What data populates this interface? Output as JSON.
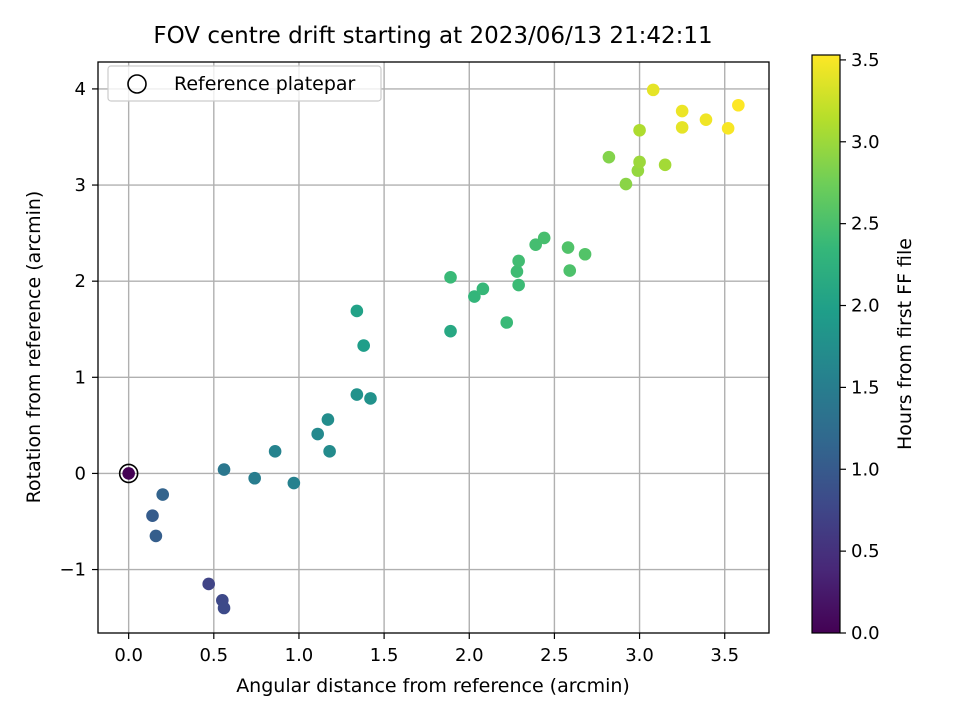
{
  "chart_data": {
    "type": "scatter",
    "title": "FOV centre drift starting at 2023/06/13 21:42:11",
    "xlabel": "Angular distance from reference (arcmin)",
    "ylabel": "Rotation from reference (arcmin)",
    "xlim": [
      -0.18,
      3.76
    ],
    "ylim": [
      -1.66,
      4.28
    ],
    "x_ticks": [
      0.0,
      0.5,
      1.0,
      1.5,
      2.0,
      2.5,
      3.0,
      3.5
    ],
    "x_tick_labels": [
      "0.0",
      "0.5",
      "1.0",
      "1.5",
      "2.0",
      "2.5",
      "3.0",
      "3.5"
    ],
    "y_ticks": [
      -1,
      0,
      1,
      2,
      3,
      4
    ],
    "y_tick_labels": [
      "−1",
      "0",
      "1",
      "2",
      "3",
      "4"
    ],
    "grid": true,
    "colorbar": {
      "label": "Hours from first FF file",
      "colormap": "viridis",
      "range": [
        0.0,
        3.53
      ],
      "ticks": [
        0.0,
        0.5,
        1.0,
        1.5,
        2.0,
        2.5,
        3.0,
        3.5
      ],
      "tick_labels": [
        "0.0",
        "0.5",
        "1.0",
        "1.5",
        "2.0",
        "2.5",
        "3.0",
        "3.5"
      ]
    },
    "legend": {
      "location": "top-left",
      "entries": [
        {
          "label": "Reference platepar",
          "marker": "open-circle"
        }
      ]
    },
    "reference_point": {
      "x": 0.0,
      "y": 0.0
    },
    "points": [
      {
        "x": 0.0,
        "y": 0.0,
        "hours": 0.0
      },
      {
        "x": 0.47,
        "y": -1.15,
        "hours": 0.72
      },
      {
        "x": 0.55,
        "y": -1.32,
        "hours": 0.78
      },
      {
        "x": 0.56,
        "y": -1.4,
        "hours": 0.8
      },
      {
        "x": 0.14,
        "y": -0.44,
        "hours": 1.02
      },
      {
        "x": 0.16,
        "y": -0.65,
        "hours": 1.05
      },
      {
        "x": 0.2,
        "y": -0.22,
        "hours": 1.12
      },
      {
        "x": 0.56,
        "y": 0.04,
        "hours": 1.4
      },
      {
        "x": 0.74,
        "y": -0.05,
        "hours": 1.5
      },
      {
        "x": 0.97,
        "y": -0.1,
        "hours": 1.56
      },
      {
        "x": 0.86,
        "y": 0.23,
        "hours": 1.58
      },
      {
        "x": 1.11,
        "y": 0.41,
        "hours": 1.66
      },
      {
        "x": 1.18,
        "y": 0.23,
        "hours": 1.7
      },
      {
        "x": 1.17,
        "y": 0.56,
        "hours": 1.72
      },
      {
        "x": 1.34,
        "y": 0.82,
        "hours": 1.8
      },
      {
        "x": 1.42,
        "y": 0.78,
        "hours": 1.8
      },
      {
        "x": 1.38,
        "y": 1.33,
        "hours": 1.96
      },
      {
        "x": 1.34,
        "y": 1.69,
        "hours": 2.02
      },
      {
        "x": 1.89,
        "y": 1.48,
        "hours": 2.12
      },
      {
        "x": 2.03,
        "y": 1.84,
        "hours": 2.32
      },
      {
        "x": 2.08,
        "y": 1.92,
        "hours": 2.36
      },
      {
        "x": 1.89,
        "y": 2.04,
        "hours": 2.38
      },
      {
        "x": 2.22,
        "y": 1.57,
        "hours": 2.38
      },
      {
        "x": 2.29,
        "y": 1.96,
        "hours": 2.4
      },
      {
        "x": 2.28,
        "y": 2.1,
        "hours": 2.42
      },
      {
        "x": 2.29,
        "y": 2.21,
        "hours": 2.44
      },
      {
        "x": 2.39,
        "y": 2.38,
        "hours": 2.46
      },
      {
        "x": 2.44,
        "y": 2.45,
        "hours": 2.48
      },
      {
        "x": 2.59,
        "y": 2.11,
        "hours": 2.52
      },
      {
        "x": 2.58,
        "y": 2.35,
        "hours": 2.54
      },
      {
        "x": 2.68,
        "y": 2.28,
        "hours": 2.56
      },
      {
        "x": 2.82,
        "y": 3.29,
        "hours": 2.86
      },
      {
        "x": 2.92,
        "y": 3.01,
        "hours": 2.9
      },
      {
        "x": 2.99,
        "y": 3.15,
        "hours": 2.96
      },
      {
        "x": 3.0,
        "y": 3.24,
        "hours": 3.0
      },
      {
        "x": 3.15,
        "y": 3.21,
        "hours": 3.04
      },
      {
        "x": 3.0,
        "y": 3.57,
        "hours": 3.1
      },
      {
        "x": 3.08,
        "y": 3.99,
        "hours": 3.4
      },
      {
        "x": 3.25,
        "y": 3.6,
        "hours": 3.4
      },
      {
        "x": 3.25,
        "y": 3.77,
        "hours": 3.44
      },
      {
        "x": 3.39,
        "y": 3.68,
        "hours": 3.46
      },
      {
        "x": 3.52,
        "y": 3.59,
        "hours": 3.5
      },
      {
        "x": 3.58,
        "y": 3.83,
        "hours": 3.53
      }
    ]
  }
}
